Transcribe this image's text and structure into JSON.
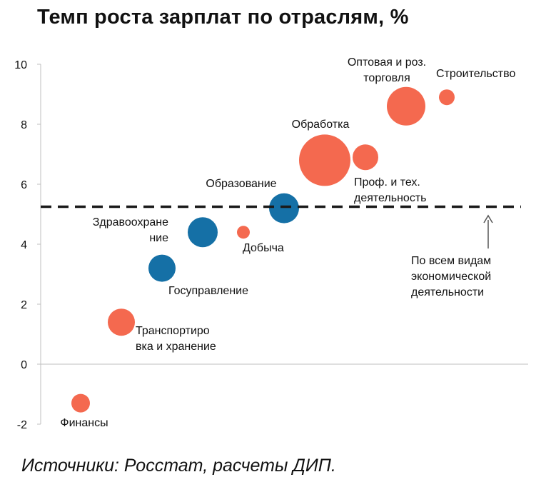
{
  "title": "Темп роста зарплат по отраслям, %",
  "source": "Источники: Росстат, расчеты ДИП.",
  "colors": {
    "orange": "#f4694f",
    "blue": "#1570a6",
    "reference": "#1a1a1a",
    "axis": "#bfbfbf"
  },
  "chart_data": {
    "type": "scatter",
    "title": "Темп роста зарплат по отраслям, %",
    "ylim": [
      -2,
      10
    ],
    "yticks": [
      "10",
      "8",
      "6",
      "4",
      "2",
      "0",
      "-2"
    ],
    "grid": false,
    "reference_line": {
      "y": 5.25,
      "label": [
        "По всем видам",
        "экономической",
        "деятельности"
      ]
    },
    "points": [
      {
        "label": [
          "Финансы"
        ],
        "x": 1,
        "y": -1.3,
        "size": 13,
        "color": "orange"
      },
      {
        "label": [
          "Транспортиро",
          "вка и хранение"
        ],
        "x": 2,
        "y": 1.4,
        "size": 19,
        "color": "orange"
      },
      {
        "label": [
          "Госуправление"
        ],
        "x": 3,
        "y": 3.2,
        "size": 19,
        "color": "blue"
      },
      {
        "label": [
          "Здравоохране",
          "ние"
        ],
        "x": 4,
        "y": 4.4,
        "size": 21,
        "color": "blue"
      },
      {
        "label": [
          "Добыча"
        ],
        "x": 5,
        "y": 4.4,
        "size": 9,
        "color": "orange"
      },
      {
        "label": [
          "Образование"
        ],
        "x": 6,
        "y": 5.2,
        "size": 21,
        "color": "blue"
      },
      {
        "label": [
          "Обработка"
        ],
        "x": 7,
        "y": 6.8,
        "size": 36,
        "color": "orange"
      },
      {
        "label": [
          "Проф. и тех.",
          "деятельность"
        ],
        "x": 8,
        "y": 6.9,
        "size": 18,
        "color": "orange"
      },
      {
        "label": [
          "Оптовая и роз.",
          "торговля"
        ],
        "x": 9,
        "y": 8.6,
        "size": 27,
        "color": "orange"
      },
      {
        "label": [
          "Строительство"
        ],
        "x": 10,
        "y": 8.9,
        "size": 11,
        "color": "orange"
      }
    ]
  }
}
